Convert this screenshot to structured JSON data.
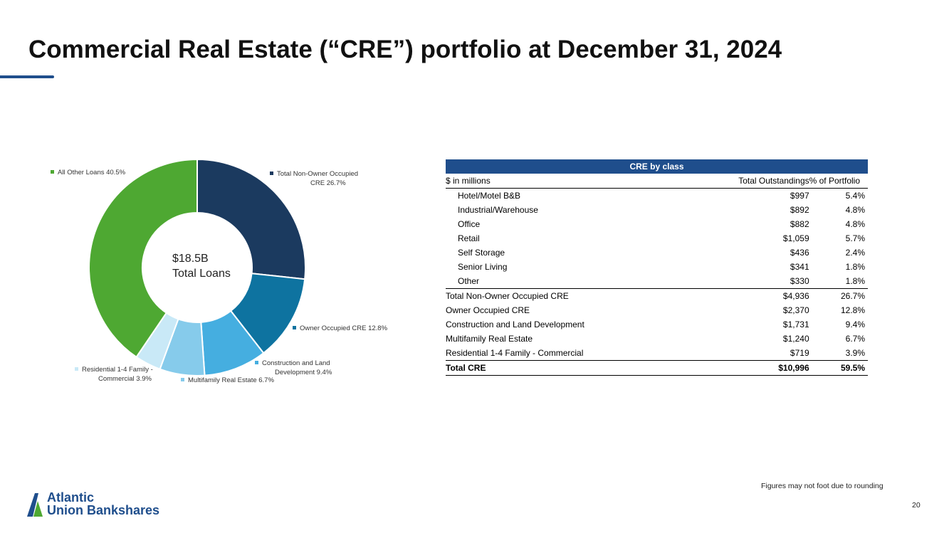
{
  "slide": {
    "title": "Commercial Real Estate (“CRE”) portfolio at December 31, 2024",
    "footnote": "Figures may not foot due to rounding",
    "page_number": "20",
    "logo": {
      "line1": "Atlantic",
      "line2": "Union Bankshares"
    }
  },
  "colors": {
    "title_rule": "#1f4e8c",
    "table_header": "#1f4e8c"
  },
  "chart_data": [
    {
      "type": "pie",
      "donut": true,
      "center_label": {
        "value": "$18.5B",
        "text": "Total Loans"
      },
      "categories": [
        "Total Non-Owner Occupied CRE",
        "Owner Occupied CRE",
        "Construction and Land Development",
        "Multifamily Real Estate",
        "Residential 1-4 Family - Commercial",
        "All Other Loans"
      ],
      "values": [
        26.7,
        12.8,
        9.4,
        6.7,
        3.9,
        40.5
      ],
      "colors": [
        "#1b3a5f",
        "#0e73a0",
        "#45aee0",
        "#86cbeb",
        "#c9e9f7",
        "#4ea832"
      ],
      "legend": [
        {
          "lines": [
            "Total Non-Owner Occupied",
            "CRE 26.7%"
          ]
        },
        {
          "lines": [
            "Owner Occupied CRE 12.8%"
          ]
        },
        {
          "lines": [
            "Construction and Land",
            "Development 9.4%"
          ]
        },
        {
          "lines": [
            "Multifamily Real Estate 6.7%"
          ]
        },
        {
          "lines": [
            "Residential 1-4 Family -",
            "Commercial 3.9%"
          ]
        },
        {
          "lines": [
            "All Other Loans 40.5%"
          ]
        }
      ]
    },
    {
      "type": "table",
      "title": "CRE by class",
      "columns": [
        "$ in millions",
        "Total Outstandings",
        "% of Portfolio"
      ],
      "rows": [
        {
          "label": "Hotel/Motel B&B",
          "outstanding": "$997",
          "pct": "5.4%",
          "indent": true
        },
        {
          "label": "Industrial/Warehouse",
          "outstanding": "$892",
          "pct": "4.8%",
          "indent": true
        },
        {
          "label": "Office",
          "outstanding": "$882",
          "pct": "4.8%",
          "indent": true
        },
        {
          "label": "Retail",
          "outstanding": "$1,059",
          "pct": "5.7%",
          "indent": true
        },
        {
          "label": "Self Storage",
          "outstanding": "$436",
          "pct": "2.4%",
          "indent": true
        },
        {
          "label": "Senior Living",
          "outstanding": "$341",
          "pct": "1.8%",
          "indent": true
        },
        {
          "label": "Other",
          "outstanding": "$330",
          "pct": "1.8%",
          "indent": true
        },
        {
          "label": "Total Non-Owner Occupied CRE",
          "outstanding": "$4,936",
          "pct": "26.7%",
          "indent": false,
          "topline": true
        },
        {
          "label": "Owner Occupied CRE",
          "outstanding": "$2,370",
          "pct": "12.8%",
          "indent": false
        },
        {
          "label": "Construction and Land Development",
          "outstanding": "$1,731",
          "pct": "9.4%",
          "indent": false
        },
        {
          "label": "Multifamily Real Estate",
          "outstanding": "$1,240",
          "pct": "6.7%",
          "indent": false
        },
        {
          "label": "Residential 1-4 Family - Commercial",
          "outstanding": "$719",
          "pct": "3.9%",
          "indent": false
        }
      ],
      "total": {
        "label": "Total CRE",
        "outstanding": "$10,996",
        "pct": "59.5%"
      }
    }
  ]
}
